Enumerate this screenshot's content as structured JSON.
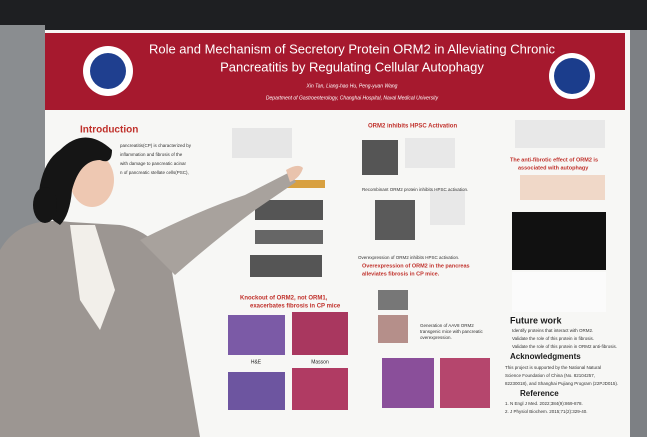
{
  "header": {
    "title_lines": [
      "Role and Mechanism of Secretory Protein ORM2 in Alleviating Chronic",
      "Pancreatitis by Regulating Cellular Autophagy"
    ],
    "authors": "Xin Tan, Liang-hao Hu, Peng-yuan Wang",
    "affiliation": "Department of Gastroenterology, Changhai Hospital, Naval Medical University"
  },
  "introduction": {
    "heading": "Introduction",
    "lines": [
      "pancreatitis(CP) is characterized by",
      "inflammation and fibrosis of the",
      "with damage to pancreatic acinar",
      "n of pancreatic stellate cells(PSC),"
    ]
  },
  "hpsc": {
    "heading": "ORM2 inhibits HPSC Activation",
    "caption_recombinant": "Recombinant ORM2 protein inhibits HPSC activation.",
    "caption_overexpression": "Overexpression of ORM2 inhibits HPSC activation.",
    "pancreas_lines": [
      "Overexpression of ORM2 in the pancreas",
      "alleviates fibrosis in CP mice."
    ],
    "aav_lines": [
      "Generation of AAV8 ORM2",
      "transgenic mice with pancreatic",
      "overexpression."
    ]
  },
  "knockout": {
    "heading_lines": [
      "Knockout of ORM2, not ORM1,",
      "exacerbates fibrosis in CP mice"
    ],
    "stain_he": "H&E",
    "stain_masson": "Masson"
  },
  "autophagy": {
    "heading_lines": [
      "The anti-fibrotic effect of ORM2 is",
      "associated with autophagy"
    ]
  },
  "future_work": {
    "heading": "Future work",
    "items": [
      "Identify proteins that interact with ORM2.",
      "Validate the role of this protein in fibrosis.",
      "Validate the role of this protein in ORM2 anti-fibrosis."
    ]
  },
  "acknowledgments": {
    "heading": "Acknowledgments",
    "lines": [
      "This project is supported by the National Natural",
      "Science Foundation of China (No. 82104257,",
      "82230018), and Shanghai Pujiang Program (22PJD015)."
    ]
  },
  "reference": {
    "heading": "Reference",
    "items": [
      "1. N Engl J Med. 2022;384(9):869-878.",
      "2. J Physiol Biochem. 2015;71(2):329-40."
    ]
  }
}
